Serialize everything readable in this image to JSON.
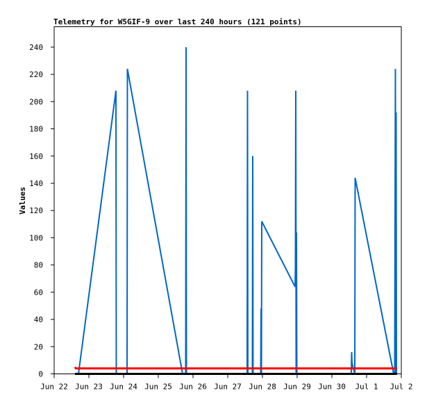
{
  "chart_data": {
    "type": "line",
    "title": "Telemetry for W5GIF-9 over last 240 hours (121 points)",
    "xlabel": "",
    "ylabel": "Values",
    "x_ticks": [
      "Jun 22",
      "Jun 23",
      "Jun 24",
      "Jun 25",
      "Jun 26",
      "Jun 27",
      "Jun 28",
      "Jun 29",
      "Jun 30",
      "Jul 1",
      "Jul 2"
    ],
    "xlim": [
      "2024-06-22 00:00",
      "2024-07-02 00:00"
    ],
    "ylim": [
      0,
      255
    ],
    "y_ticks": [
      0,
      20,
      40,
      60,
      80,
      100,
      120,
      140,
      160,
      180,
      200,
      220,
      240
    ],
    "grid": false,
    "series": [
      {
        "color": "#0066cc",
        "points": [
          [
            "2024-06-22 14:24",
            0
          ],
          [
            "2024-06-22 16:48",
            0
          ],
          [
            "2024-06-23 18:43",
            208
          ],
          [
            "2024-06-23 18:57",
            0
          ],
          [
            "2024-06-24 02:24",
            0
          ],
          [
            "2024-06-24 02:38",
            224
          ],
          [
            "2024-06-25 16:48",
            0
          ],
          [
            "2024-06-25 18:57",
            0
          ],
          [
            "2024-06-25 19:12",
            240
          ],
          [
            "2024-06-25 19:26",
            0
          ],
          [
            "2024-06-27 13:26",
            0
          ],
          [
            "2024-06-27 13:40",
            208
          ],
          [
            "2024-06-27 13:55",
            0
          ],
          [
            "2024-06-27 17:02",
            0
          ],
          [
            "2024-06-27 17:16",
            160
          ],
          [
            "2024-06-27 17:31",
            0
          ],
          [
            "2024-06-27 22:48",
            0
          ],
          [
            "2024-06-27 23:02",
            48
          ],
          [
            "2024-06-27 23:17",
            0
          ],
          [
            "2024-06-27 23:31",
            112
          ],
          [
            "2024-06-28 22:34",
            64
          ],
          [
            "2024-06-28 22:48",
            80
          ],
          [
            "2024-06-28 23:02",
            208
          ],
          [
            "2024-06-28 23:17",
            0
          ],
          [
            "2024-06-28 23:31",
            104
          ],
          [
            "2024-06-28 23:46",
            0
          ],
          [
            "2024-06-30 13:26",
            0
          ],
          [
            "2024-06-30 13:40",
            16
          ],
          [
            "2024-06-30 13:55",
            8
          ],
          [
            "2024-06-30 15:50",
            0
          ],
          [
            "2024-06-30 16:05",
            144
          ],
          [
            "2024-07-01 18:43",
            0
          ],
          [
            "2024-07-01 19:26",
            0
          ],
          [
            "2024-07-01 19:40",
            112
          ],
          [
            "2024-07-01 19:55",
            224
          ],
          [
            "2024-07-01 20:10",
            0
          ],
          [
            "2024-07-01 20:24",
            192
          ],
          [
            "2024-07-01 20:38",
            0
          ]
        ]
      },
      {
        "color": "#ff0000",
        "points": [
          [
            "2024-06-22 14:24",
            5
          ],
          [
            "2024-06-22 15:00",
            4
          ],
          [
            "2024-07-01 21:00",
            4
          ]
        ]
      },
      {
        "color": "#000000",
        "points": [
          [
            "2024-06-22 14:24",
            0
          ],
          [
            "2024-07-01 21:00",
            0
          ]
        ]
      }
    ]
  }
}
